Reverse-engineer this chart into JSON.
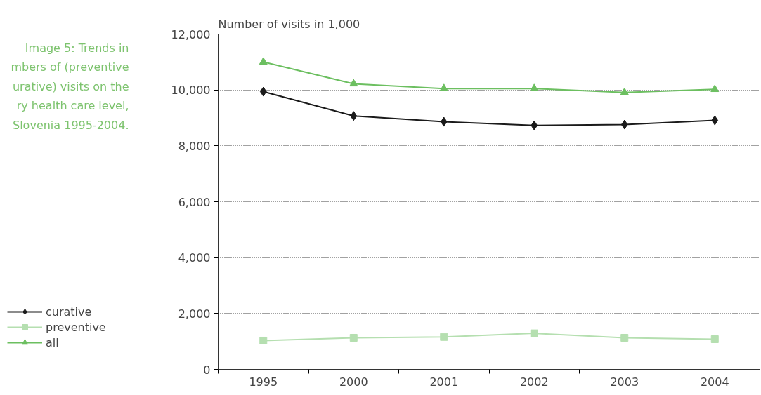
{
  "chart_data": {
    "type": "line",
    "ylabel": "Number of visits in 1,000",
    "annotations": [
      "Image 5: Trends in\nmbers of (preventive\nurative) visits on the\nry health care level,\nSlovenia 1995-2004."
    ],
    "categories": [
      "1995",
      "2000",
      "2001",
      "2002",
      "2003",
      "2004"
    ],
    "series": [
      {
        "name": "curative",
        "color": "#1a1a1a",
        "marker": "diamond",
        "values": [
          9940,
          9070,
          8860,
          8730,
          8760,
          8910
        ]
      },
      {
        "name": "preventive",
        "color": "#b5dfb0",
        "marker": "square",
        "values": [
          1030,
          1130,
          1160,
          1290,
          1130,
          1080
        ]
      },
      {
        "name": "all",
        "color": "#6cbf60",
        "marker": "triangle",
        "values": [
          11000,
          10220,
          10050,
          10050,
          9910,
          10020
        ]
      }
    ],
    "ylim": [
      0,
      12000
    ],
    "yticks": [
      {
        "value": 0,
        "label": "0"
      },
      {
        "value": 2000,
        "label": "2,000"
      },
      {
        "value": 4000,
        "label": "4,000"
      },
      {
        "value": 6000,
        "label": "6,000"
      },
      {
        "value": 8000,
        "label": "8,000"
      },
      {
        "value": 10000,
        "label": "10,000"
      },
      {
        "value": 12000,
        "label": "12,000"
      }
    ],
    "grid": "y",
    "legend": "bottom left",
    "line_style": "solid"
  }
}
